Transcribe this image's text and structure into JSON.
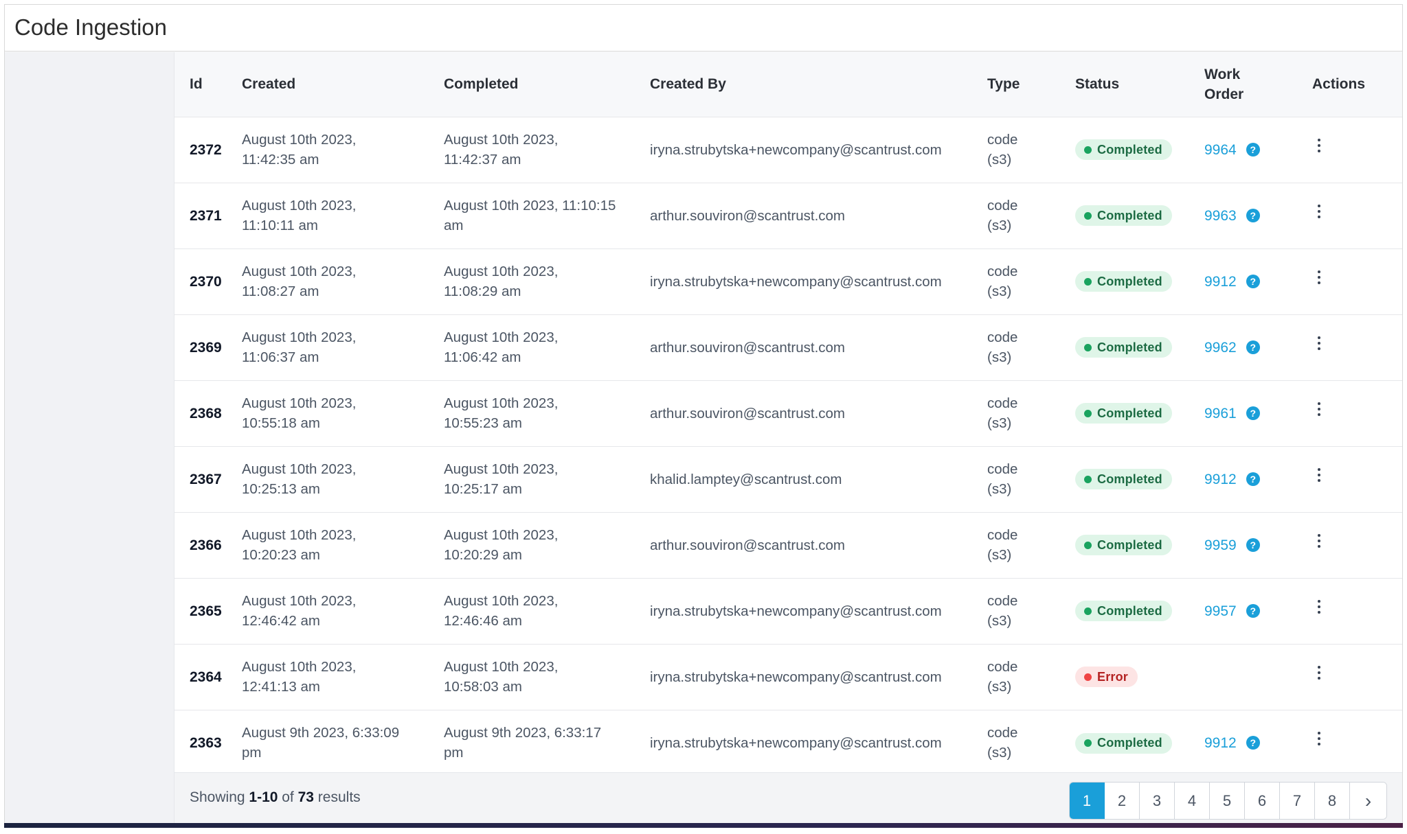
{
  "page": {
    "title": "Code Ingestion"
  },
  "table": {
    "headers": {
      "id": "Id",
      "created": "Created",
      "completed": "Completed",
      "created_by": "Created By",
      "type": "Type",
      "status": "Status",
      "work_order_1": "Work",
      "work_order_2": "Order",
      "actions": "Actions"
    },
    "rows": [
      {
        "id": "2372",
        "created_1": "August 10th 2023,",
        "created_2": "11:42:35 am",
        "completed_1": "August 10th 2023,",
        "completed_2": "11:42:37 am",
        "created_by": "iryna.strubytska+newcompany@scantrust.com",
        "type_1": "code",
        "type_2": "(s3)",
        "status": "Completed",
        "work_order": "9964"
      },
      {
        "id": "2371",
        "created_1": "August 10th 2023,",
        "created_2": "11:10:11 am",
        "completed_1": "August 10th 2023, 11:10:15",
        "completed_2": "am",
        "created_by": "arthur.souviron@scantrust.com",
        "type_1": "code",
        "type_2": "(s3)",
        "status": "Completed",
        "work_order": "9963"
      },
      {
        "id": "2370",
        "created_1": "August 10th 2023,",
        "created_2": "11:08:27 am",
        "completed_1": "August 10th 2023,",
        "completed_2": "11:08:29 am",
        "created_by": "iryna.strubytska+newcompany@scantrust.com",
        "type_1": "code",
        "type_2": "(s3)",
        "status": "Completed",
        "work_order": "9912"
      },
      {
        "id": "2369",
        "created_1": "August 10th 2023,",
        "created_2": "11:06:37 am",
        "completed_1": "August 10th 2023,",
        "completed_2": "11:06:42 am",
        "created_by": "arthur.souviron@scantrust.com",
        "type_1": "code",
        "type_2": "(s3)",
        "status": "Completed",
        "work_order": "9962"
      },
      {
        "id": "2368",
        "created_1": "August 10th 2023,",
        "created_2": "10:55:18 am",
        "completed_1": "August 10th 2023,",
        "completed_2": "10:55:23 am",
        "created_by": "arthur.souviron@scantrust.com",
        "type_1": "code",
        "type_2": "(s3)",
        "status": "Completed",
        "work_order": "9961"
      },
      {
        "id": "2367",
        "created_1": "August 10th 2023,",
        "created_2": "10:25:13 am",
        "completed_1": "August 10th 2023,",
        "completed_2": "10:25:17 am",
        "created_by": "khalid.lamptey@scantrust.com",
        "type_1": "code",
        "type_2": "(s3)",
        "status": "Completed",
        "work_order": "9912"
      },
      {
        "id": "2366",
        "created_1": "August 10th 2023,",
        "created_2": "10:20:23 am",
        "completed_1": "August 10th 2023,",
        "completed_2": "10:20:29 am",
        "created_by": "arthur.souviron@scantrust.com",
        "type_1": "code",
        "type_2": "(s3)",
        "status": "Completed",
        "work_order": "9959"
      },
      {
        "id": "2365",
        "created_1": "August 10th 2023,",
        "created_2": "12:46:42 am",
        "completed_1": "August 10th 2023,",
        "completed_2": "12:46:46 am",
        "created_by": "iryna.strubytska+newcompany@scantrust.com",
        "type_1": "code",
        "type_2": "(s3)",
        "status": "Completed",
        "work_order": "9957"
      },
      {
        "id": "2364",
        "created_1": "August 10th 2023,",
        "created_2": "12:41:13 am",
        "completed_1": "August 10th 2023,",
        "completed_2": "10:58:03 am",
        "created_by": "iryna.strubytska+newcompany@scantrust.com",
        "type_1": "code",
        "type_2": "(s3)",
        "status": "Error",
        "work_order": ""
      },
      {
        "id": "2363",
        "created_1": "August 9th 2023, 6:33:09",
        "created_2": "pm",
        "completed_1": "August 9th 2023, 6:33:17",
        "completed_2": "pm",
        "created_by": "iryna.strubytska+newcompany@scantrust.com",
        "type_1": "code",
        "type_2": "(s3)",
        "status": "Completed",
        "work_order": "9912"
      }
    ]
  },
  "footer": {
    "showing_prefix": "Showing ",
    "range": "1-10",
    "of": " of ",
    "total": "73",
    "suffix": " results"
  },
  "pagination": {
    "pages": [
      "1",
      "2",
      "3",
      "4",
      "5",
      "6",
      "7",
      "8"
    ],
    "active": "1",
    "next_icon": "chevron-right-icon"
  },
  "colors": {
    "accent": "#1a9fd9",
    "completed_bg": "#dff5e8",
    "completed_text": "#1c6b43",
    "error_bg": "#fde4e4",
    "error_text": "#b42323"
  }
}
